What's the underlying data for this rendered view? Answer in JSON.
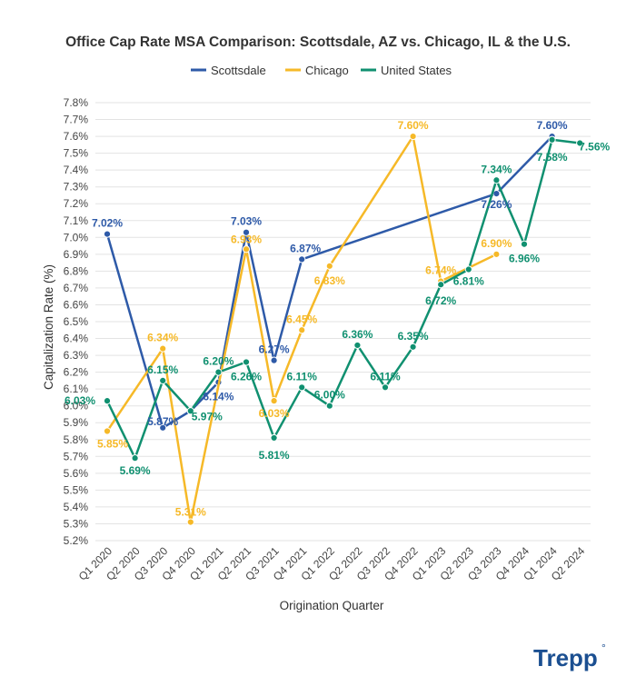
{
  "brand": {
    "name": "Trepp",
    "mark": "°"
  },
  "chart_data": {
    "type": "line",
    "title": "Office Cap Rate MSA Comparison: Scottsdale, AZ vs. Chicago, IL & the U.S.",
    "xlabel": "Origination Quarter",
    "ylabel": "Capitalization Rate (%)",
    "categories": [
      "Q1 2020",
      "Q2 2020",
      "Q3 2020",
      "Q4 2020",
      "Q1 2021",
      "Q2 2021",
      "Q3 2021",
      "Q4 2021",
      "Q1 2022",
      "Q2 2022",
      "Q3 2022",
      "Q4 2022",
      "Q1 2023",
      "Q2 2023",
      "Q3 2023",
      "Q4 2024",
      "Q1 2024",
      "Q2 2024"
    ],
    "ylim": [
      5.2,
      7.8
    ],
    "yticks": [
      "5.2%",
      "5.3%",
      "5.4%",
      "5.5%",
      "5.6%",
      "5.7%",
      "5.8%",
      "5.9%",
      "6.0%",
      "6.1%",
      "6.2%",
      "6.3%",
      "6.4%",
      "6.5%",
      "6.6%",
      "6.7%",
      "6.8%",
      "6.9%",
      "7.0%",
      "7.1%",
      "7.2%",
      "7.3%",
      "7.4%",
      "7.5%",
      "7.6%",
      "7.7%",
      "7.8%"
    ],
    "grid": true,
    "legend_position": "top",
    "series": [
      {
        "name": "Scottsdale",
        "color": "#2e5aa8",
        "values": [
          7.02,
          null,
          5.87,
          5.97,
          6.14,
          7.03,
          6.27,
          6.87,
          null,
          null,
          null,
          null,
          null,
          null,
          7.26,
          null,
          7.6,
          null
        ],
        "labels": [
          "7.02%",
          null,
          "5.87%",
          null,
          "6.14%",
          "7.03%",
          "6.27%",
          "6.87%",
          null,
          null,
          null,
          null,
          null,
          null,
          "7.26%",
          null,
          "7.60%",
          null
        ]
      },
      {
        "name": "Chicago",
        "color": "#f6b928",
        "values": [
          5.85,
          null,
          6.34,
          5.31,
          null,
          6.93,
          6.03,
          6.45,
          6.83,
          null,
          null,
          7.6,
          6.74,
          null,
          6.9,
          null,
          null,
          null
        ],
        "labels": [
          "5.85%",
          null,
          "6.34%",
          "5.31%",
          null,
          "6.93%",
          "6.03%",
          "6.45%",
          "6.83%",
          null,
          null,
          "7.60%",
          "6.74%",
          null,
          "6.90%",
          null,
          null,
          null
        ]
      },
      {
        "name": "United States",
        "color": "#109070",
        "values": [
          6.03,
          5.69,
          6.15,
          5.97,
          6.2,
          6.26,
          5.81,
          6.11,
          6.0,
          6.36,
          6.11,
          6.35,
          6.72,
          6.81,
          7.34,
          6.96,
          7.58,
          7.56
        ],
        "labels": [
          "6.03%",
          "5.69%",
          "6.15%",
          "5.97%",
          "6.20%",
          "6.26%",
          "5.81%",
          "6.11%",
          "6.00%",
          "6.36%",
          "6.11%",
          "6.35%",
          "6.72%",
          "6.81%",
          "7.34%",
          "6.96%",
          "7.58%",
          "7.56%"
        ]
      }
    ]
  }
}
